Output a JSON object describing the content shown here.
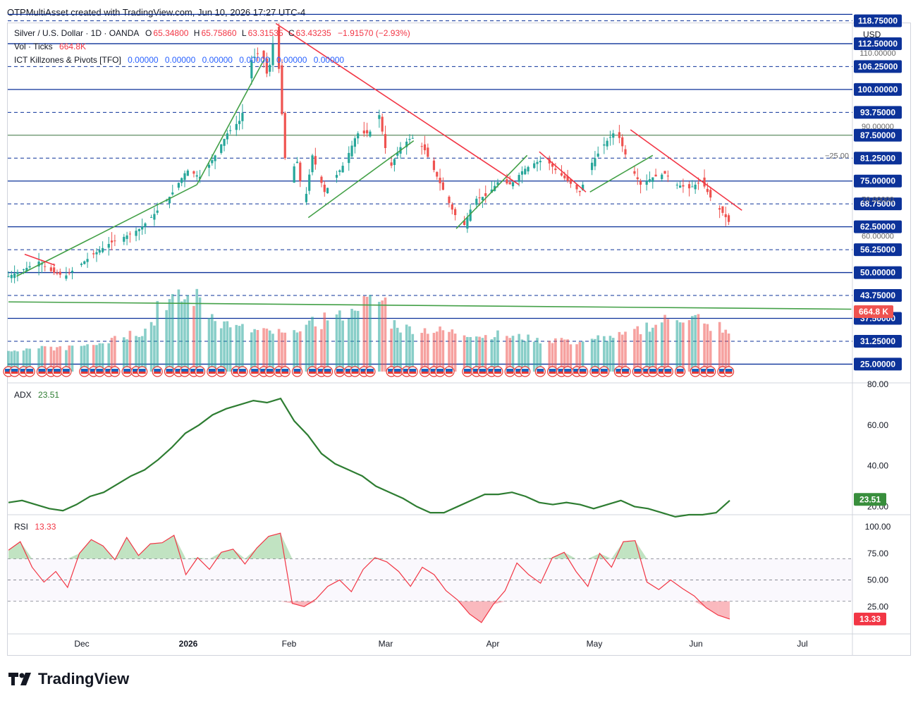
{
  "header": {
    "text": "OTPMultiAsset created with TradingView.com, Jun 10, 2026 17:27 UTC-4"
  },
  "legend": {
    "symbol": "Silver / U.S. Dollar · 1D · OANDA",
    "o_label": "O",
    "o": "65.34800",
    "h_label": "H",
    "h": "65.75860",
    "l_label": "L",
    "l": "63.31535",
    "c_label": "C",
    "c": "63.43235",
    "change": "−1.91570 (−2.93%)",
    "vol_label": "Vol · Ticks",
    "vol_value": "664.8K",
    "ict_label": "ICT Killzones & Pivots [TFO]",
    "ict_values": "0.00000  0.00000  0.00000  0.00000  0.00000  0.00000",
    "adx_label": "ADX",
    "adx_value": "23.51",
    "rsi_label": "RSI",
    "rsi_value": "13.33"
  },
  "currency": "USD",
  "brand": "TradingView",
  "colors": {
    "up": "#26a69a",
    "down": "#ef5350",
    "trend_up": "#43a047",
    "trend_down": "#f23645",
    "level": "#0c3299",
    "adx": "#2e7d32",
    "rsi": "#f23645"
  },
  "chart_data": [
    {
      "type": "candlestick",
      "title": "Silver / U.S. Dollar · 1D · OANDA",
      "x_ticks": [
        "Dec",
        "2026",
        "Feb",
        "Mar",
        "Apr",
        "May",
        "Jun",
        "Jul"
      ],
      "y_ticks": [
        "25.00000",
        "31.25000",
        "37.50000",
        "43.75000",
        "50.00000",
        "56.25000",
        "62.50000",
        "68.75000",
        "75.00000",
        "81.25000",
        "87.50000",
        "93.75000",
        "100.00000",
        "106.25000",
        "112.50000",
        "118.75000"
      ],
      "y_range": [
        22,
        120
      ],
      "solid_levels": [
        25,
        37.5,
        50,
        62.5,
        75,
        100,
        112.5
      ],
      "dashed_levels": [
        31.25,
        43.75,
        56.25,
        68.75,
        81.25,
        93.75,
        106.25,
        118.75
      ],
      "extra_level": 87.5,
      "other_label": "−25.00",
      "last_price": 63.43,
      "vol_badge": "664.8 K",
      "price_path": [
        [
          0,
          49
        ],
        [
          8,
          51
        ],
        [
          15,
          53
        ],
        [
          22,
          50
        ],
        [
          28,
          49
        ],
        [
          35,
          52
        ],
        [
          42,
          55
        ],
        [
          50,
          58
        ],
        [
          58,
          60
        ],
        [
          65,
          62
        ],
        [
          72,
          66
        ],
        [
          80,
          71
        ],
        [
          88,
          78
        ],
        [
          95,
          76
        ],
        [
          102,
          82
        ],
        [
          108,
          88
        ],
        [
          115,
          92
        ],
        [
          120,
          108
        ],
        [
          125,
          111
        ],
        [
          128,
          103
        ],
        [
          132,
          118
        ],
        [
          136,
          85
        ],
        [
          138,
          70
        ],
        [
          142,
          82
        ],
        [
          146,
          68
        ],
        [
          150,
          82
        ],
        [
          156,
          72
        ],
        [
          160,
          75
        ],
        [
          166,
          80
        ],
        [
          172,
          88
        ],
        [
          178,
          88
        ],
        [
          183,
          93
        ],
        [
          188,
          78
        ],
        [
          193,
          84
        ],
        [
          199,
          87
        ],
        [
          205,
          84
        ],
        [
          210,
          78
        ],
        [
          215,
          72
        ],
        [
          220,
          66
        ],
        [
          225,
          63
        ],
        [
          230,
          70
        ],
        [
          236,
          71
        ],
        [
          242,
          75
        ],
        [
          248,
          74
        ],
        [
          254,
          78
        ],
        [
          260,
          80
        ],
        [
          265,
          81
        ],
        [
          270,
          78
        ],
        [
          276,
          75
        ],
        [
          282,
          72
        ],
        [
          288,
          80
        ],
        [
          294,
          85
        ],
        [
          300,
          89
        ],
        [
          306,
          80
        ],
        [
          312,
          74
        ],
        [
          318,
          76
        ],
        [
          324,
          77
        ],
        [
          330,
          74
        ],
        [
          336,
          73
        ],
        [
          342,
          75
        ],
        [
          348,
          69
        ],
        [
          353,
          66
        ],
        [
          356,
          63.4
        ]
      ],
      "candle_axis": {
        "days": [
          0,
          356
        ],
        "months": {
          "Dec": 34,
          "2026": 65,
          "Feb": 96,
          "Mar": 125,
          "Apr": 156,
          "May": 186,
          "Jun": 217,
          "Jul": 247
        }
      },
      "volume_profile": [
        15,
        18,
        22,
        20,
        25,
        28,
        32,
        40,
        45,
        60,
        95,
        98,
        100,
        75,
        60,
        52,
        48,
        45,
        42,
        55,
        60,
        70,
        75,
        92,
        95,
        60,
        52,
        50,
        48,
        46,
        44,
        40,
        42,
        38,
        36,
        33,
        35,
        30,
        32,
        37,
        40,
        48,
        56,
        65,
        70,
        68,
        55,
        45
      ]
    },
    {
      "type": "line",
      "title": "ADX",
      "value": "23.51",
      "y_ticks": [
        "20.00",
        "40.00",
        "60.00",
        "80.00"
      ],
      "y_range": [
        16,
        80
      ],
      "series": [
        {
          "values": [
            22,
            23,
            21,
            19,
            18,
            21,
            25,
            27,
            31,
            35,
            38,
            43,
            49,
            56,
            60,
            65,
            68,
            70,
            72,
            71,
            73,
            62,
            55,
            46,
            41,
            38,
            35,
            30,
            27,
            24,
            20,
            17,
            17,
            20,
            23,
            26,
            26,
            27,
            25,
            22,
            21,
            22,
            21,
            19,
            21,
            23,
            20,
            19,
            17,
            15,
            16,
            16,
            17,
            23
          ]
        }
      ]
    },
    {
      "type": "line",
      "title": "RSI",
      "value": "13.33",
      "y_ticks": [
        "25.00",
        "50.00",
        "75.00",
        "100.00"
      ],
      "y_range": [
        0,
        110
      ],
      "series": [
        {
          "values": [
            78,
            86,
            62,
            48,
            58,
            43,
            75,
            88,
            82,
            69,
            90,
            73,
            84,
            85,
            92,
            55,
            71,
            60,
            76,
            79,
            65,
            80,
            91,
            94,
            28,
            25,
            32,
            44,
            50,
            39,
            60,
            71,
            67,
            58,
            44,
            62,
            55,
            40,
            31,
            18,
            10,
            27,
            40,
            66,
            55,
            47,
            71,
            76,
            58,
            44,
            75,
            62,
            86,
            87,
            48,
            41,
            50,
            42,
            35,
            24,
            17,
            13.33
          ]
        }
      ]
    }
  ]
}
